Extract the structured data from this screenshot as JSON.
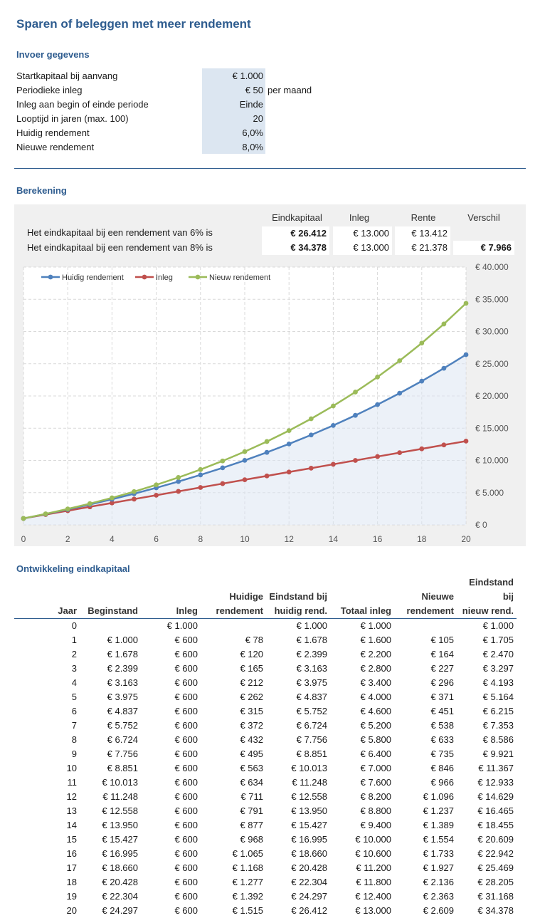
{
  "title": "Sparen of beleggen met meer rendement",
  "input": {
    "heading": "Invoer gegevens",
    "rows": [
      {
        "label": "Startkapitaal bij aanvang",
        "value": "€ 1.000",
        "unit": ""
      },
      {
        "label": "Periodieke inleg",
        "value": "€ 50",
        "unit": "per maand"
      },
      {
        "label": "Inleg aan begin of einde periode",
        "value": "Einde",
        "unit": ""
      },
      {
        "label": "Looptijd in jaren (max. 100)",
        "value": "20",
        "unit": ""
      },
      {
        "label": "Huidig rendement",
        "value": "6,0%",
        "unit": ""
      },
      {
        "label": "Nieuwe rendement",
        "value": "8,0%",
        "unit": ""
      }
    ]
  },
  "calc": {
    "heading": "Berekening",
    "headers": [
      "Eindkapitaal",
      "Inleg",
      "Rente",
      "Verschil"
    ],
    "rows": [
      {
        "label": "Het eindkapitaal bij een rendement van 6% is",
        "eindkapitaal": "€ 26.412",
        "inleg": "€ 13.000",
        "rente": "€ 13.412",
        "verschil": ""
      },
      {
        "label": "Het eindkapitaal bij een rendement van 8% is",
        "eindkapitaal": "€ 34.378",
        "inleg": "€ 13.000",
        "rente": "€ 21.378",
        "verschil": "€ 7.966"
      }
    ]
  },
  "colors": {
    "blue": "#4f81bd",
    "red": "#c0504d",
    "green": "#9bbb59",
    "accent": "#2e5c8f",
    "input_bg": "#dce6f1"
  },
  "chart_data": {
    "type": "line",
    "x": [
      0,
      1,
      2,
      3,
      4,
      5,
      6,
      7,
      8,
      9,
      10,
      11,
      12,
      13,
      14,
      15,
      16,
      17,
      18,
      19,
      20
    ],
    "series": [
      {
        "name": "Huidig rendement",
        "color": "#4f81bd",
        "values": [
          1000,
          1678,
          2399,
          3163,
          3975,
          4837,
          5752,
          6724,
          7756,
          8851,
          10013,
          11248,
          12558,
          13950,
          15427,
          16995,
          18660,
          20428,
          22304,
          24297,
          26412
        ]
      },
      {
        "name": "Inleg",
        "color": "#c0504d",
        "values": [
          1000,
          1600,
          2200,
          2800,
          3400,
          4000,
          4600,
          5200,
          5800,
          6400,
          7000,
          7600,
          8200,
          8800,
          9400,
          10000,
          10600,
          11200,
          11800,
          12400,
          13000
        ]
      },
      {
        "name": "Nieuw rendement",
        "color": "#9bbb59",
        "values": [
          1000,
          1705,
          2470,
          3297,
          4193,
          5164,
          6215,
          7353,
          8586,
          9921,
          11367,
          12933,
          14629,
          16465,
          18455,
          20609,
          22942,
          25469,
          28205,
          31168,
          34378
        ]
      }
    ],
    "xticks": [
      0,
      2,
      4,
      6,
      8,
      10,
      12,
      14,
      16,
      18,
      20
    ],
    "xtick_labels": [
      "0",
      "2",
      "4",
      "6",
      "8",
      "10",
      "12",
      "14",
      "16",
      "18",
      "20"
    ],
    "yticks": [
      0,
      5000,
      10000,
      15000,
      20000,
      25000,
      30000,
      35000,
      40000
    ],
    "ytick_labels": [
      "€ 0",
      "€ 5.000",
      "€ 10.000",
      "€ 15.000",
      "€ 20.000",
      "€ 25.000",
      "€ 30.000",
      "€ 35.000",
      "€ 40.000"
    ],
    "ylim": [
      0,
      40000
    ],
    "xlim": [
      0,
      20
    ],
    "legend": "top-left",
    "grid": true
  },
  "development": {
    "heading": "Ontwikkeling eindkapitaal",
    "headers_top": [
      "",
      "",
      "",
      "Huidige",
      "Eindstand bij",
      "",
      "Nieuwe",
      "Eindstand bij"
    ],
    "headers_bottom": [
      "Jaar",
      "Beginstand",
      "Inleg",
      "rendement",
      "huidig rend.",
      "Totaal inleg",
      "rendement",
      "nieuw rend."
    ],
    "rows": [
      [
        "0",
        "",
        "€ 1.000",
        "",
        "€ 1.000",
        "€ 1.000",
        "",
        "€ 1.000"
      ],
      [
        "1",
        "€ 1.000",
        "€ 600",
        "€ 78",
        "€ 1.678",
        "€ 1.600",
        "€ 105",
        "€ 1.705"
      ],
      [
        "2",
        "€ 1.678",
        "€ 600",
        "€ 120",
        "€ 2.399",
        "€ 2.200",
        "€ 164",
        "€ 2.470"
      ],
      [
        "3",
        "€ 2.399",
        "€ 600",
        "€ 165",
        "€ 3.163",
        "€ 2.800",
        "€ 227",
        "€ 3.297"
      ],
      [
        "4",
        "€ 3.163",
        "€ 600",
        "€ 212",
        "€ 3.975",
        "€ 3.400",
        "€ 296",
        "€ 4.193"
      ],
      [
        "5",
        "€ 3.975",
        "€ 600",
        "€ 262",
        "€ 4.837",
        "€ 4.000",
        "€ 371",
        "€ 5.164"
      ],
      [
        "6",
        "€ 4.837",
        "€ 600",
        "€ 315",
        "€ 5.752",
        "€ 4.600",
        "€ 451",
        "€ 6.215"
      ],
      [
        "7",
        "€ 5.752",
        "€ 600",
        "€ 372",
        "€ 6.724",
        "€ 5.200",
        "€ 538",
        "€ 7.353"
      ],
      [
        "8",
        "€ 6.724",
        "€ 600",
        "€ 432",
        "€ 7.756",
        "€ 5.800",
        "€ 633",
        "€ 8.586"
      ],
      [
        "9",
        "€ 7.756",
        "€ 600",
        "€ 495",
        "€ 8.851",
        "€ 6.400",
        "€ 735",
        "€ 9.921"
      ],
      [
        "10",
        "€ 8.851",
        "€ 600",
        "€ 563",
        "€ 10.013",
        "€ 7.000",
        "€ 846",
        "€ 11.367"
      ],
      [
        "11",
        "€ 10.013",
        "€ 600",
        "€ 634",
        "€ 11.248",
        "€ 7.600",
        "€ 966",
        "€ 12.933"
      ],
      [
        "12",
        "€ 11.248",
        "€ 600",
        "€ 711",
        "€ 12.558",
        "€ 8.200",
        "€ 1.096",
        "€ 14.629"
      ],
      [
        "13",
        "€ 12.558",
        "€ 600",
        "€ 791",
        "€ 13.950",
        "€ 8.800",
        "€ 1.237",
        "€ 16.465"
      ],
      [
        "14",
        "€ 13.950",
        "€ 600",
        "€ 877",
        "€ 15.427",
        "€ 9.400",
        "€ 1.389",
        "€ 18.455"
      ],
      [
        "15",
        "€ 15.427",
        "€ 600",
        "€ 968",
        "€ 16.995",
        "€ 10.000",
        "€ 1.554",
        "€ 20.609"
      ],
      [
        "16",
        "€ 16.995",
        "€ 600",
        "€ 1.065",
        "€ 18.660",
        "€ 10.600",
        "€ 1.733",
        "€ 22.942"
      ],
      [
        "17",
        "€ 18.660",
        "€ 600",
        "€ 1.168",
        "€ 20.428",
        "€ 11.200",
        "€ 1.927",
        "€ 25.469"
      ],
      [
        "18",
        "€ 20.428",
        "€ 600",
        "€ 1.277",
        "€ 22.304",
        "€ 11.800",
        "€ 2.136",
        "€ 28.205"
      ],
      [
        "19",
        "€ 22.304",
        "€ 600",
        "€ 1.392",
        "€ 24.297",
        "€ 12.400",
        "€ 2.363",
        "€ 31.168"
      ],
      [
        "20",
        "€ 24.297",
        "€ 600",
        "€ 1.515",
        "€ 26.412",
        "€ 13.000",
        "€ 2.609",
        "€ 34.378"
      ]
    ]
  }
}
